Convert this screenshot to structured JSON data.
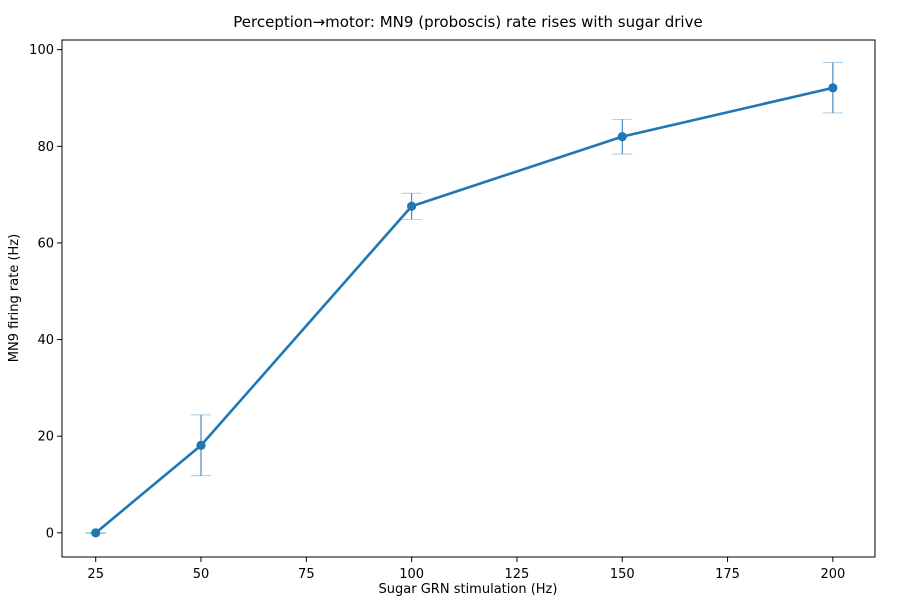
{
  "chart_data": {
    "type": "line",
    "title": "Perception→motor: MN9 (proboscis) rate rises with sugar drive",
    "xlabel": "Sugar GRN stimulation (Hz)",
    "ylabel": "MN9 firing rate (Hz)",
    "xlim": [
      17,
      210
    ],
    "ylim": [
      -5,
      102
    ],
    "xticks": [
      25,
      50,
      75,
      100,
      125,
      150,
      175,
      200
    ],
    "yticks": [
      0,
      20,
      40,
      60,
      80,
      100
    ],
    "grid": false,
    "color": "#1f77b4",
    "series": [
      {
        "x": [
          25,
          50,
          100,
          150,
          200
        ],
        "y": [
          0,
          18.1,
          67.6,
          82,
          92.1
        ],
        "yerr": [
          0.1,
          6.3,
          2.7,
          3.6,
          5.2
        ]
      }
    ]
  }
}
